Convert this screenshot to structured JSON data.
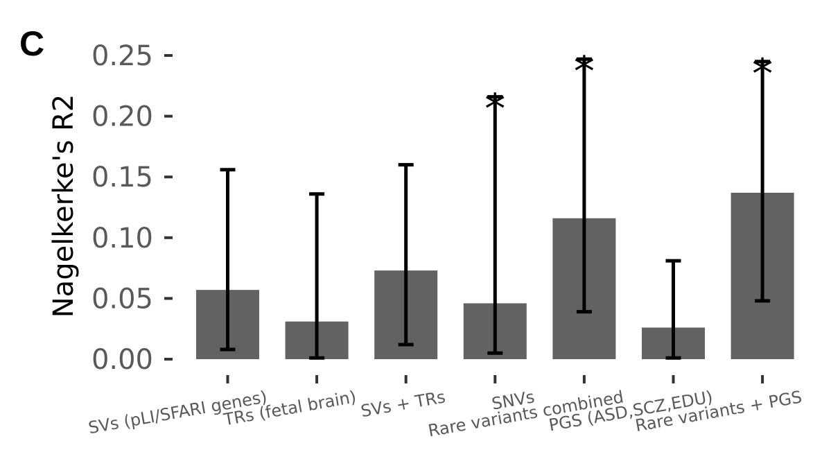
{
  "panel_label": "C",
  "chart_data": {
    "type": "bar",
    "ylabel": "Nagelkerke's R2",
    "xlabel": "",
    "ylim": [
      0,
      0.26
    ],
    "yticks": [
      0.0,
      0.05,
      0.1,
      0.15,
      0.2,
      0.25
    ],
    "ytick_labels": [
      "0.00",
      "0.05",
      "0.10",
      "0.15",
      "0.20",
      "0.25"
    ],
    "categories": [
      "SVs (pLI/SFARI genes)",
      "TRs (fetal brain)",
      "SVs + TRs",
      "SNVs",
      "Rare variants combined",
      "PGS (ASD,SCZ,EDU)",
      "Rare variants + PGS"
    ],
    "values": [
      0.057,
      0.031,
      0.073,
      0.046,
      0.116,
      0.026,
      0.137
    ],
    "ci_lower": [
      0.008,
      0.001,
      0.012,
      0.005,
      0.039,
      0.001,
      0.048
    ],
    "ci_upper": [
      0.156,
      0.136,
      0.16,
      0.216,
      0.247,
      0.081,
      0.245
    ],
    "significant": [
      false,
      false,
      false,
      true,
      true,
      false,
      true
    ],
    "significance_marker": "*",
    "bar_color": "#626262",
    "errorbar_color": "#000000",
    "tick_color": "#333333",
    "label_color": "#595959",
    "grid": false,
    "legend": "none"
  }
}
